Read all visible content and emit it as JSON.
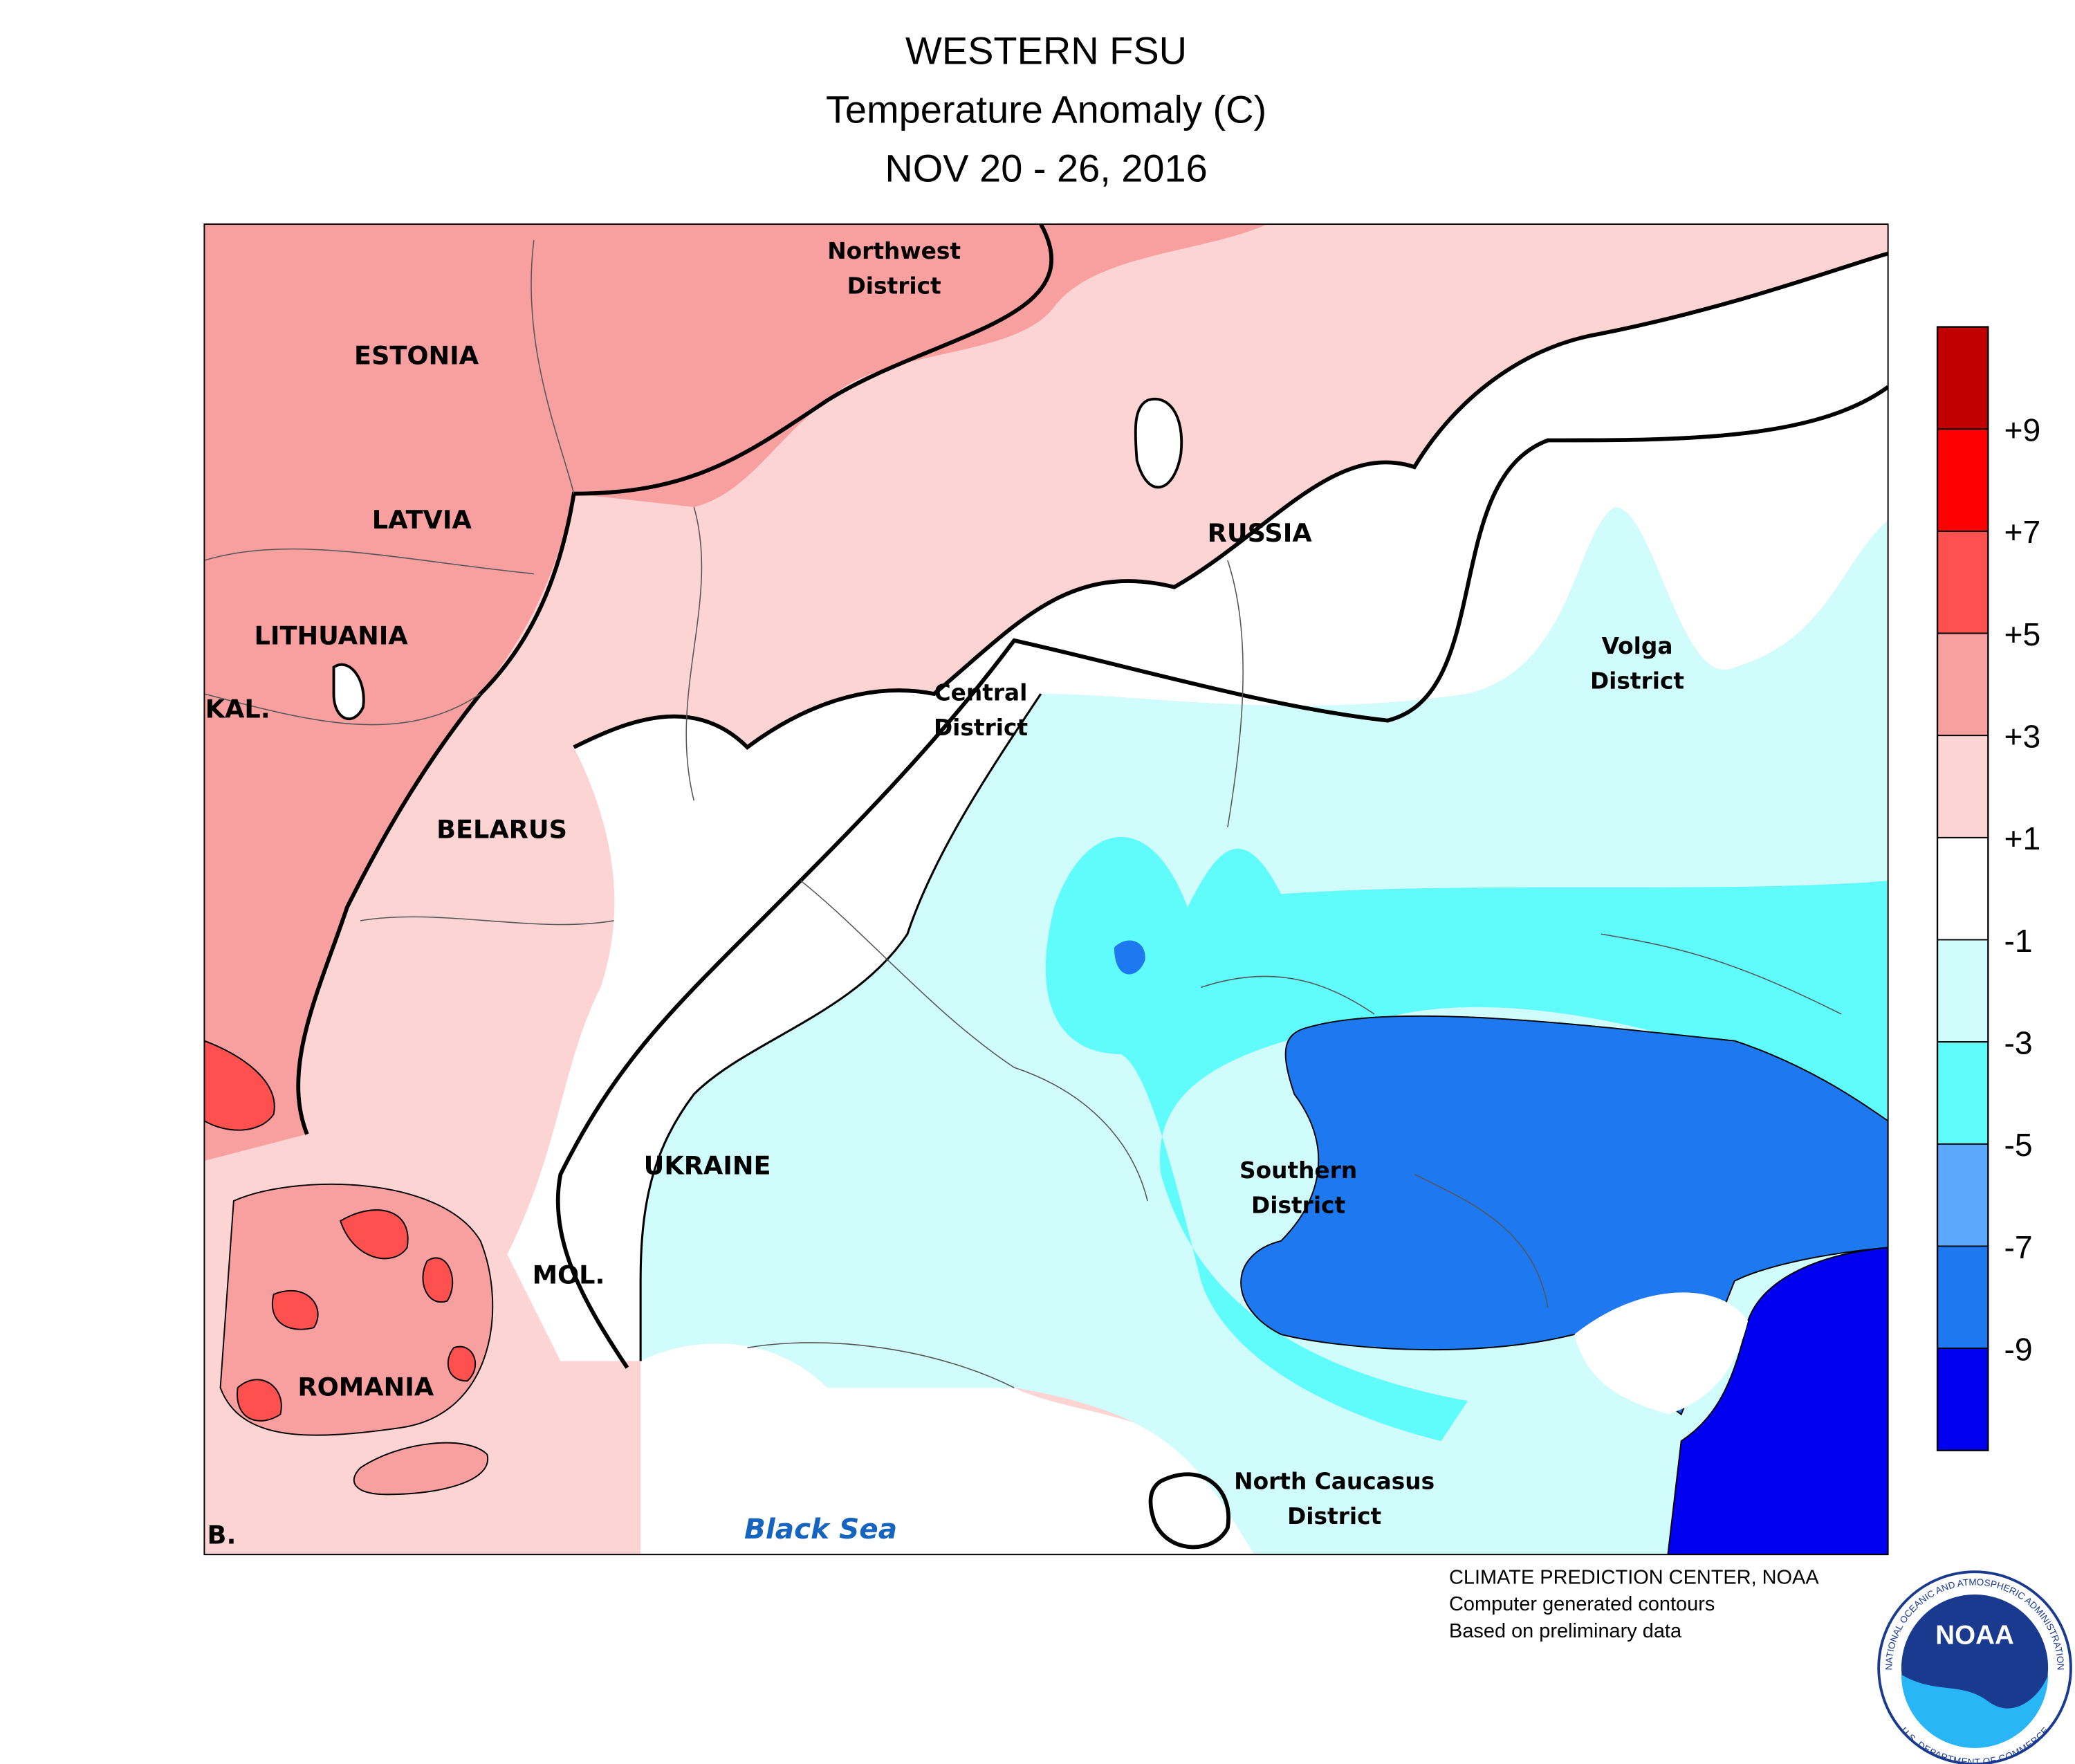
{
  "header": {
    "title": "WESTERN FSU",
    "subtitle": "Temperature Anomaly (C)",
    "date": "NOV 20 - 26, 2016"
  },
  "map_labels": {
    "northwest": [
      "Northwest",
      "District"
    ],
    "estonia": "ESTONIA",
    "latvia": "LATVIA",
    "lithuania": "LITHUANIA",
    "kal": "KAL.",
    "belarus": "BELARUS",
    "russia": "RUSSIA",
    "central": [
      "Central",
      "District"
    ],
    "volga": [
      "Volga",
      "District"
    ],
    "ukraine": "UKRAINE",
    "mol": "MOL.",
    "romania": "ROMANIA",
    "b": "B.",
    "southern": [
      "Southern",
      "District"
    ],
    "north_caucasus": [
      "North Caucasus",
      "District"
    ],
    "black_sea": "Black Sea"
  },
  "colorbar": {
    "vlim": [
      -11,
      11
    ],
    "colors": [
      "#c00000",
      "#ff0000",
      "#ff5050",
      "#f8a0a0",
      "#fcd4d4",
      "#ffffff",
      "#d0fcfc",
      "#60fcfc",
      "#5aa8ff",
      "#1e78f0",
      "#0000f0"
    ],
    "ticks": [
      {
        "value": 9,
        "label": "+9"
      },
      {
        "value": 7,
        "label": "+7"
      },
      {
        "value": 5,
        "label": "+5"
      },
      {
        "value": 3,
        "label": "+3"
      },
      {
        "value": 1,
        "label": "+1"
      },
      -1,
      -3,
      -5,
      -7,
      -9
    ]
  },
  "credits": [
    "CLIMATE PREDICTION CENTER, NOAA",
    "Computer generated contours",
    "Based on preliminary data"
  ],
  "logo": {
    "name": "NOAA",
    "ring_top": "NATIONAL OCEANIC AND ATMOSPHERIC ADMINISTRATION",
    "ring_bottom": "U.S. DEPARTMENT OF COMMERCE"
  }
}
